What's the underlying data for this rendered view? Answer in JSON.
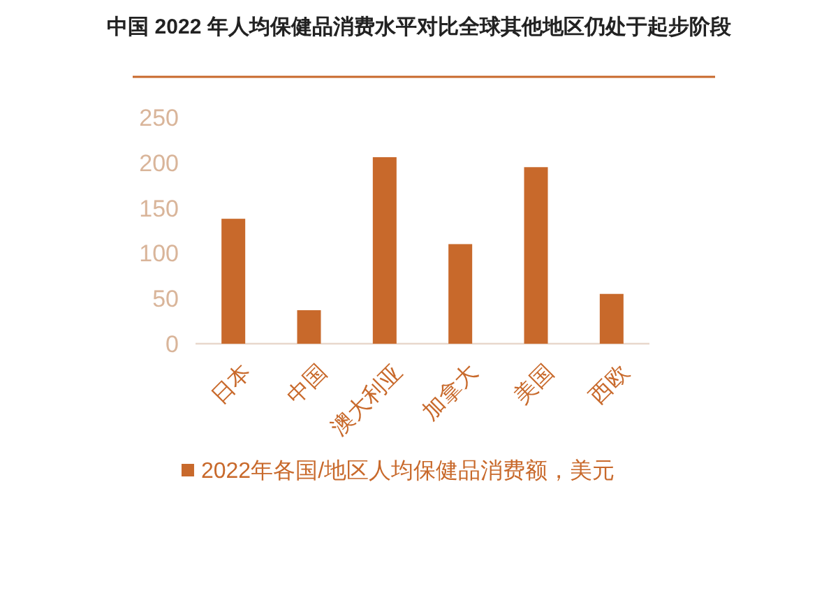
{
  "chart_data": {
    "type": "bar",
    "title": "中国 2022 年人均保健品消费水平对比全球其他地区仍处于起步阶段",
    "categories": [
      "日本",
      "中国",
      "澳大利亚",
      "加拿大",
      "美国",
      "西欧"
    ],
    "series": [
      {
        "name": "2022年各国/地区人均保健品消费额，美元",
        "color": "#c8692b",
        "values": [
          138,
          37,
          206,
          110,
          195,
          55
        ]
      }
    ],
    "ylim": [
      0,
      250
    ],
    "yticks": [
      0,
      50,
      100,
      150,
      200,
      250
    ],
    "grid": false,
    "legend": "bottom"
  }
}
